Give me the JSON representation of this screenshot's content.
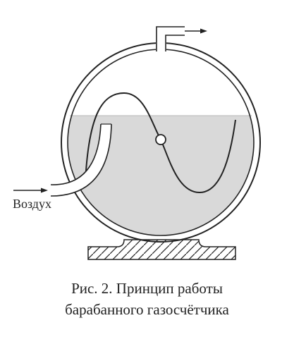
{
  "figure": {
    "air_label": "Воздух",
    "caption_line1": "Рис. 2. Принцип работы",
    "caption_line2": "барабанного газосчётчика"
  },
  "colors": {
    "line": "#222222",
    "water": "#d9d9d9",
    "background": "#ffffff"
  }
}
